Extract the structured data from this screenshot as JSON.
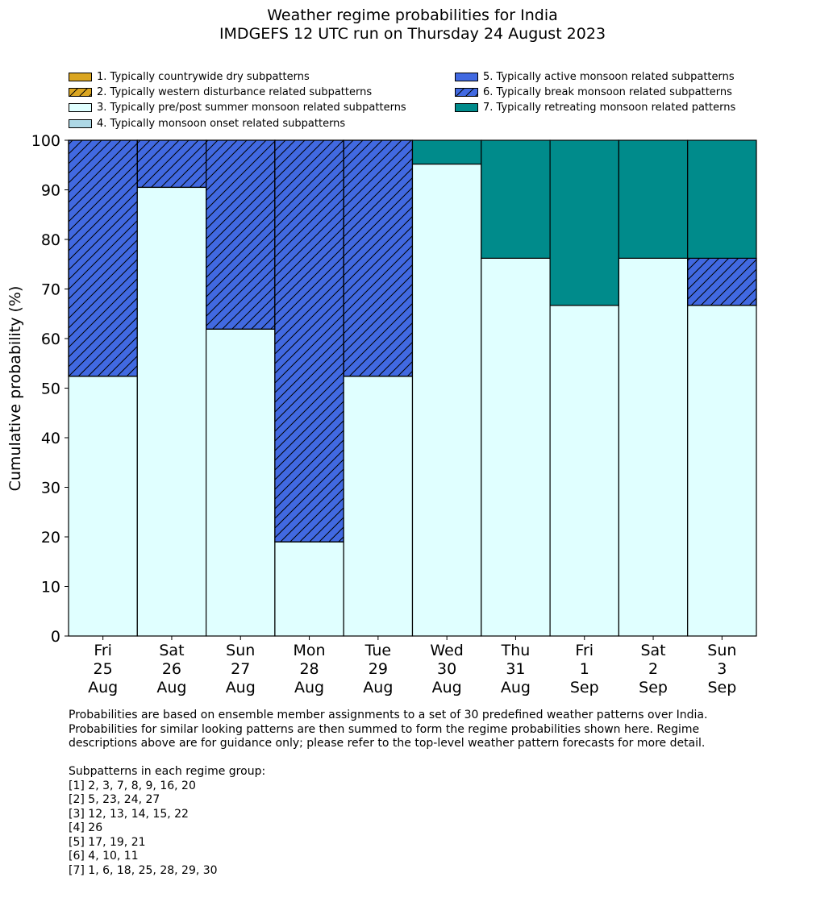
{
  "title": {
    "line1": "Weather regime probabilities for India",
    "line2": "IMDGEFS 12 UTC run on Thursday 24 August 2023"
  },
  "chart_data": {
    "type": "bar",
    "stacked": true,
    "ylabel": "Cumulative probability (%)",
    "ylim": [
      0,
      100
    ],
    "yticks": [
      0,
      10,
      20,
      30,
      40,
      50,
      60,
      70,
      80,
      90,
      100
    ],
    "categories": [
      [
        "Fri",
        "25",
        "Aug"
      ],
      [
        "Sat",
        "26",
        "Aug"
      ],
      [
        "Sun",
        "27",
        "Aug"
      ],
      [
        "Mon",
        "28",
        "Aug"
      ],
      [
        "Tue",
        "29",
        "Aug"
      ],
      [
        "Wed",
        "30",
        "Aug"
      ],
      [
        "Thu",
        "31",
        "Aug"
      ],
      [
        "Fri",
        "1",
        "Sep"
      ],
      [
        "Sat",
        "2",
        "Sep"
      ],
      [
        "Sun",
        "3",
        "Sep"
      ]
    ],
    "legend_placement": "top",
    "series": [
      {
        "name": "1. Typically countrywide dry subpatterns",
        "color": "#DAA520",
        "hatch": false,
        "values": [
          0,
          0,
          0,
          0,
          0,
          0,
          0,
          0,
          0,
          0
        ]
      },
      {
        "name": "2. Typically western disturbance related subpatterns",
        "color": "#DAA520",
        "hatch": true,
        "values": [
          0,
          0,
          0,
          0,
          0,
          0,
          0,
          0,
          0,
          0
        ]
      },
      {
        "name": "3. Typically pre/post summer monsoon related subpatterns",
        "color": "#E0FFFF",
        "hatch": false,
        "values": [
          52.4,
          90.5,
          61.9,
          19.0,
          52.4,
          95.2,
          76.2,
          66.7,
          76.2,
          66.7
        ]
      },
      {
        "name": "4. Typically monsoon onset related subpatterns",
        "color": "#ADD8E6",
        "hatch": false,
        "values": [
          0,
          0,
          0,
          0,
          0,
          0,
          0,
          0,
          0,
          0
        ]
      },
      {
        "name": "5. Typically active monsoon related subpatterns",
        "color": "#4169E1",
        "hatch": false,
        "values": [
          0,
          0,
          0,
          0,
          0,
          0,
          0,
          0,
          0,
          0
        ]
      },
      {
        "name": "6. Typically break monsoon related subpatterns",
        "color": "#4169E1",
        "hatch": true,
        "values": [
          47.6,
          9.5,
          38.1,
          81.0,
          47.6,
          0,
          0,
          0,
          0,
          9.5
        ]
      },
      {
        "name": "7. Typically retreating monsoon related patterns",
        "color": "#008B8B",
        "hatch": false,
        "values": [
          0,
          0,
          0,
          0,
          0,
          4.8,
          23.8,
          33.3,
          23.8,
          23.8
        ]
      }
    ]
  },
  "notes": {
    "para1": "Probabilities are based on ensemble member assignments to a set of 30 predefined weather patterns over India.\nProbabilities for similar looking patterns are then summed to form the regime probabilities shown here. Regime\ndescriptions above are for guidance only; please refer to the top-level weather pattern forecasts for more detail.",
    "heading": "Subpatterns in each regime group:",
    "groups": [
      "[1] 2, 3, 7, 8, 9, 16, 20",
      "[2] 5, 23, 24, 27",
      "[3] 12, 13, 14, 15, 22",
      "[4] 26",
      "[5] 17, 19, 21",
      "[6] 4, 10, 11",
      "[7] 1, 6, 18, 25, 28, 29, 30"
    ]
  }
}
